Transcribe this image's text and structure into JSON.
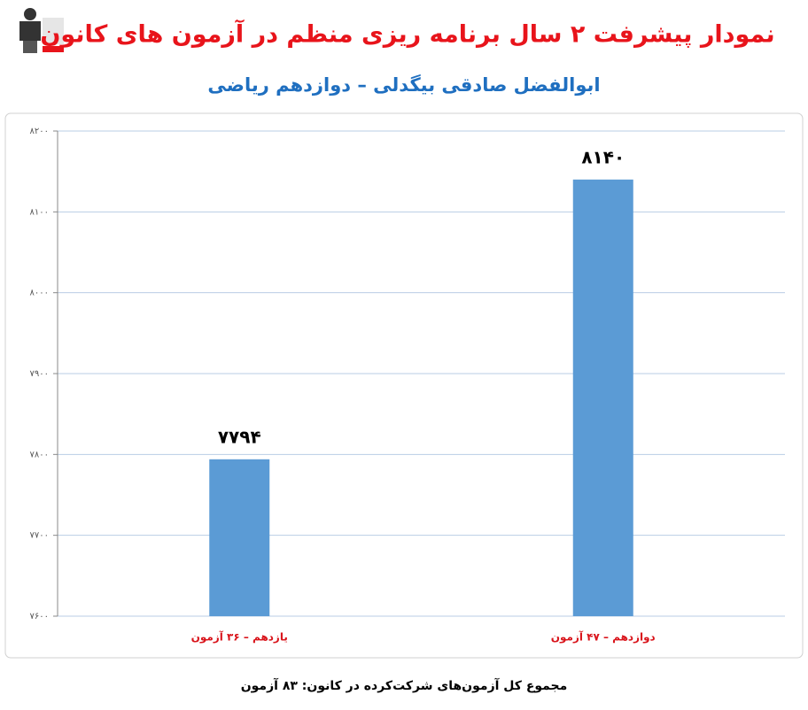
{
  "chart_data": {
    "type": "bar",
    "title": "نمودار پیشرفت ۲ سال برنامه ریزی منظم در آزمون های کانون",
    "subtitle": "ابوالفضل صادقی بیگدلی – دوازدهم ریاضی",
    "categories": [
      "یازدهم – ۳۶ آزمون",
      "دوازدهم – ۴۷ آزمون"
    ],
    "values": [
      7794,
      8140
    ],
    "value_labels": [
      "۷۷۹۴",
      "۸۱۴۰"
    ],
    "color": "#5b9bd5",
    "ylim": [
      7600,
      8200
    ],
    "yticks": [
      {
        "value": 7600,
        "label": "۷۶۰۰"
      },
      {
        "value": 7700,
        "label": "۷۷۰۰"
      },
      {
        "value": 7800,
        "label": "۷۸۰۰"
      },
      {
        "value": 7900,
        "label": "۷۹۰۰"
      },
      {
        "value": 8000,
        "label": "۸۰۰۰"
      },
      {
        "value": 8100,
        "label": "۸۱۰۰"
      },
      {
        "value": 8200,
        "label": "۸۲۰۰"
      }
    ],
    "grid": true,
    "footnote": "مجموع کل آزمون‌های شرکت‌کرده در کانون: ۸۳ آزمون"
  }
}
